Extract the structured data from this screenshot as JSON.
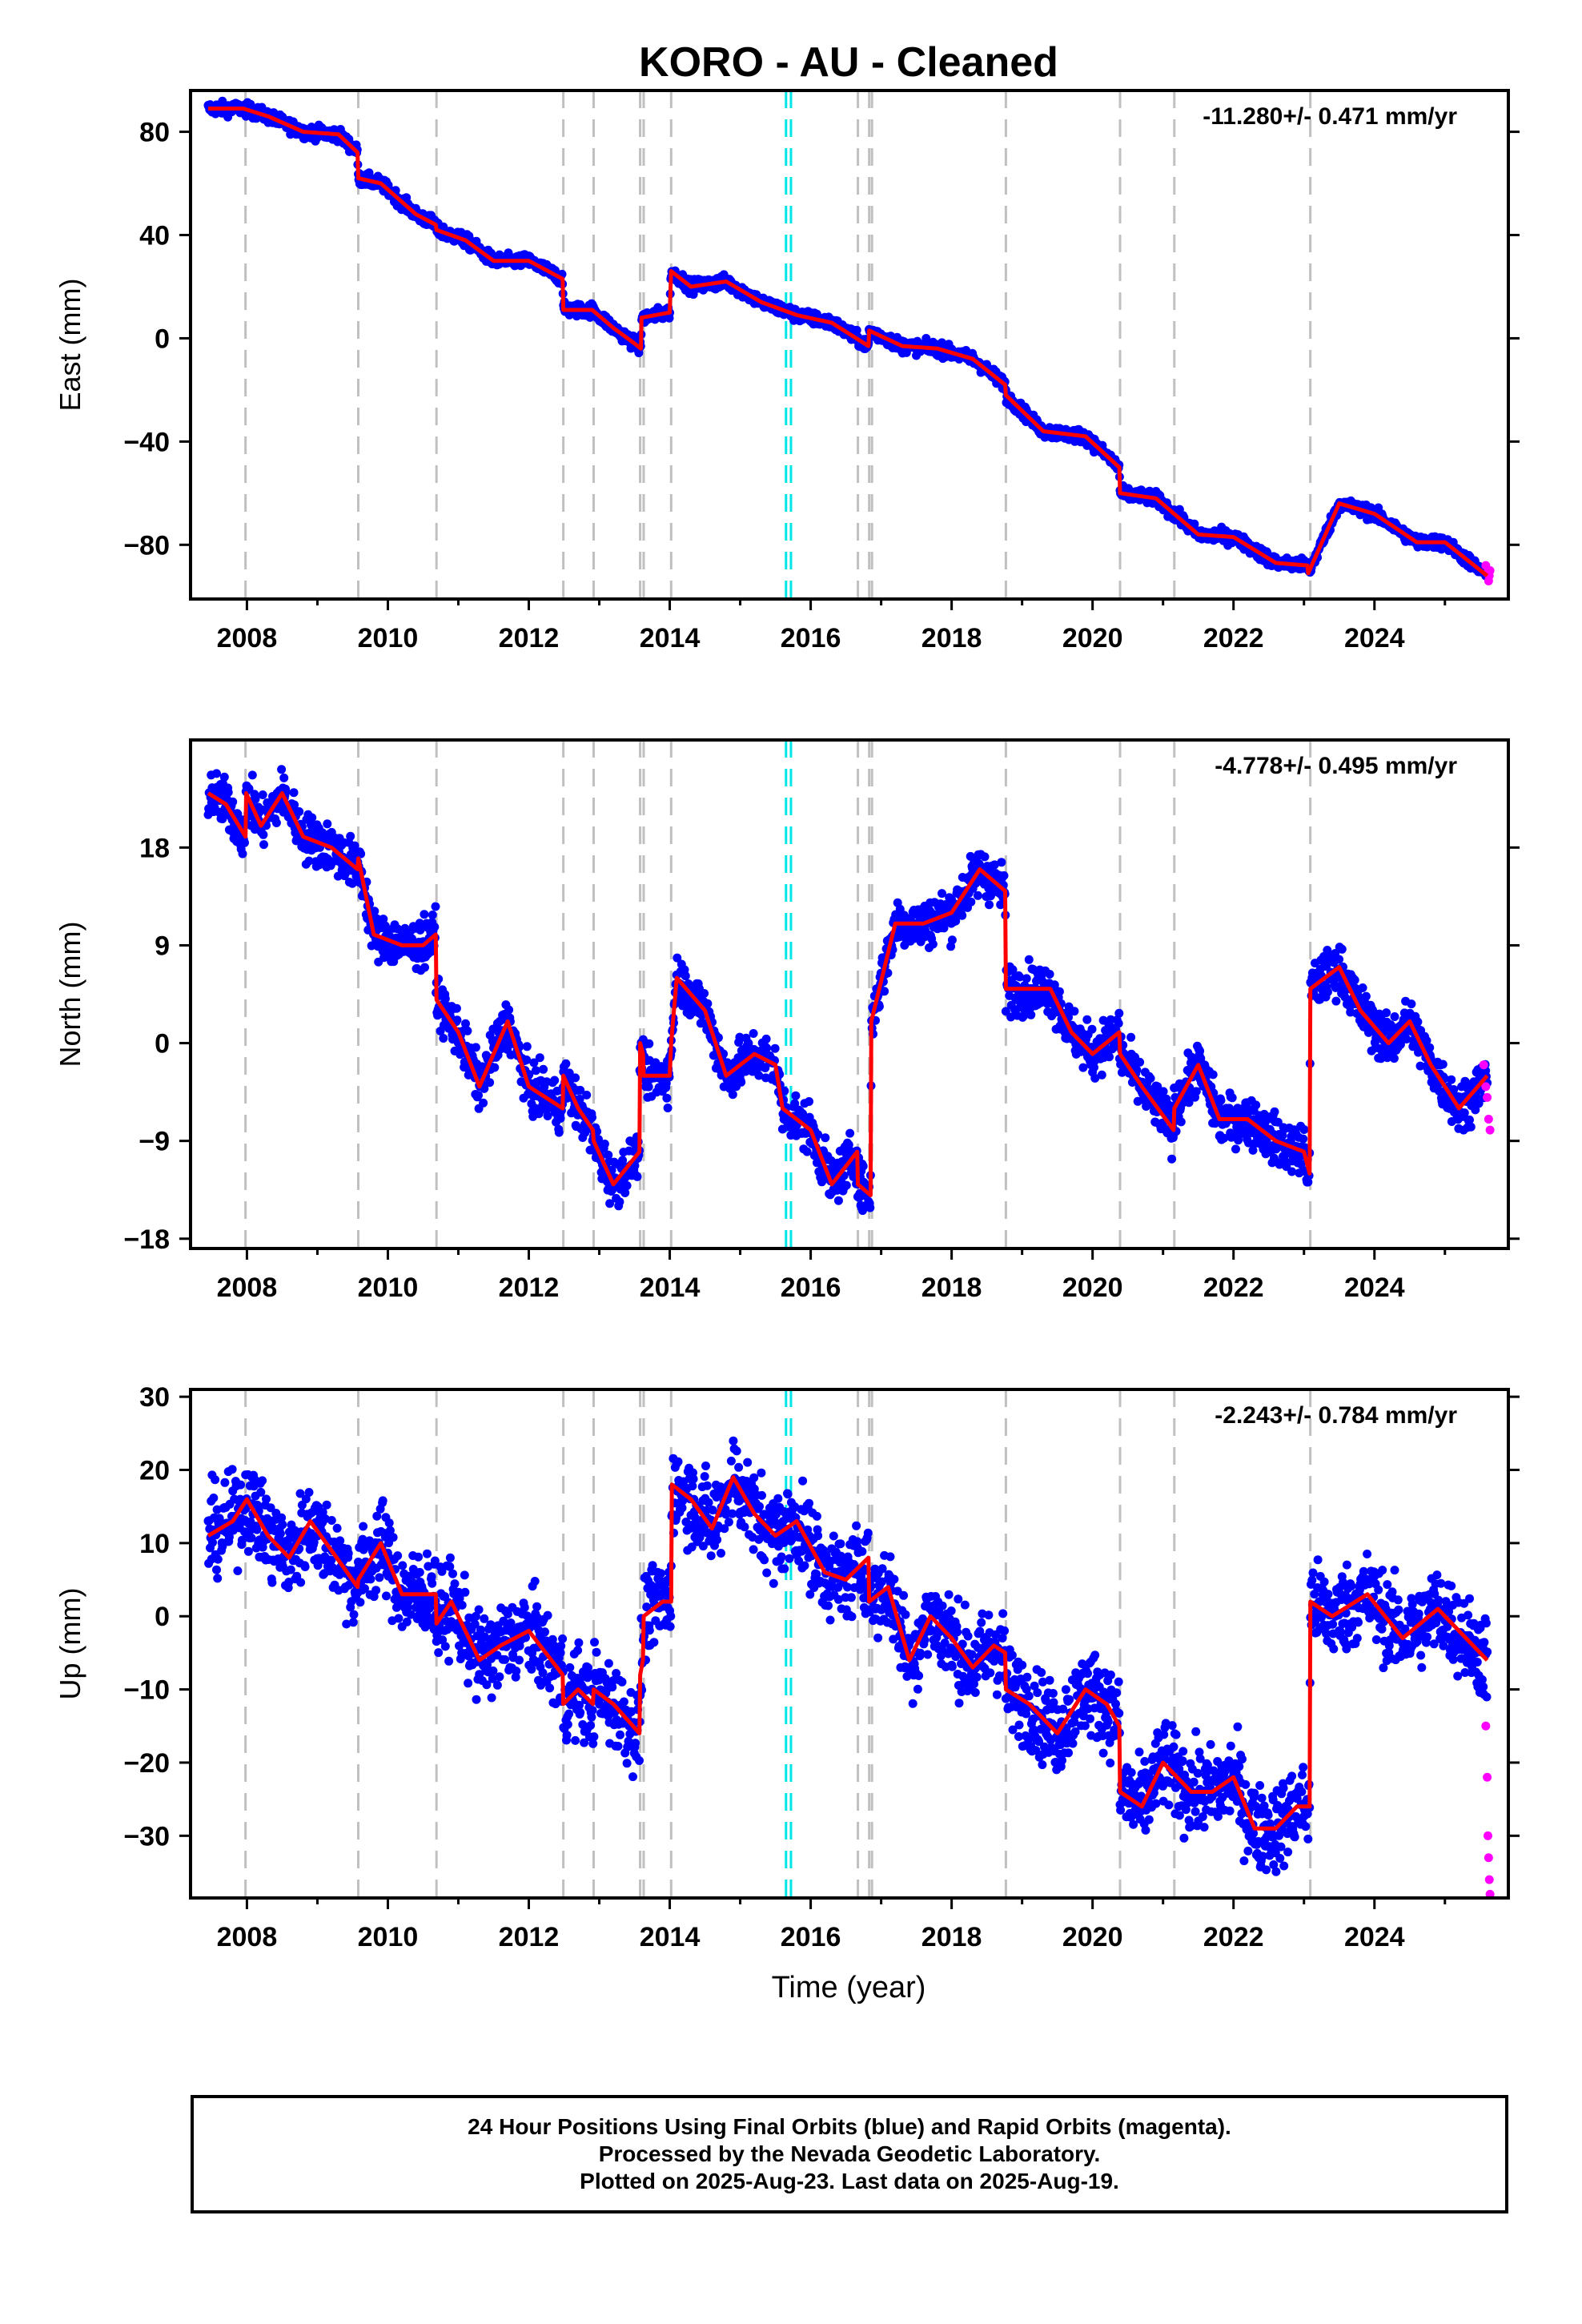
{
  "title": "KORO  - AU - Cleaned",
  "xlabel": "Time (year)",
  "footer": {
    "line1": "24 Hour Positions Using Final Orbits (blue) and Rapid Orbits (magenta).",
    "line2": "Processed by the Nevada Geodetic Laboratory.",
    "line3": "Plotted on 2025-Aug-23. Last data on 2025-Aug-19."
  },
  "colors": {
    "final": "#0000ff",
    "rapid": "#ff00ff",
    "model": "#ff0000",
    "event": "#c0c0c0",
    "antenna": "#00e5e5"
  },
  "chart_data": [
    {
      "type": "scatter",
      "name": "east",
      "ylabel": "East (mm)",
      "rate": "-11.280+/- 0.471 mm/yr",
      "xlim": [
        2007.2,
        2025.9
      ],
      "ylim": [
        -101,
        96
      ],
      "xticks": [
        2008,
        2010,
        2012,
        2014,
        2016,
        2018,
        2020,
        2022,
        2024
      ],
      "yticks": [
        -80,
        -40,
        0,
        40,
        80
      ],
      "noise": 1.8,
      "series": [
        {
          "x": [
            2007.45,
            2007.95,
            2008.3,
            2008.8,
            2009.3,
            2009.57,
            2009.58,
            2009.9,
            2010.4,
            2010.68,
            2010.69,
            2011.1,
            2011.5,
            2012.0,
            2012.48,
            2012.49,
            2012.9,
            2013.2,
            2013.5,
            2013.59,
            2013.6,
            2014.0,
            2014.02,
            2014.3,
            2014.8,
            2015.3,
            2015.8,
            2016.3,
            2016.82,
            2016.83,
            2017.3,
            2017.8,
            2018.3,
            2018.76,
            2018.77,
            2019.3,
            2019.9,
            2020.38,
            2020.39,
            2020.9,
            2021.5,
            2022.0,
            2022.6,
            2023.05,
            2023.06,
            2023.5,
            2024.0,
            2024.6,
            2025.0,
            2025.6
          ],
          "y": [
            89,
            89,
            86,
            80,
            79,
            72,
            62,
            60,
            48,
            44,
            42,
            38,
            30,
            30,
            23,
            11,
            11,
            4,
            -2,
            -4,
            8,
            10,
            26,
            20,
            22,
            14,
            9,
            6,
            -3,
            3,
            -3,
            -4,
            -8,
            -18,
            -22,
            -36,
            -38,
            -50,
            -60,
            -62,
            -76,
            -77,
            -87,
            -88,
            -91,
            -64,
            -68,
            -79,
            -79,
            -92
          ]
        }
      ],
      "rapid": {
        "x": [
          2025.58,
          2025.6,
          2025.62,
          2025.63,
          2025.64
        ],
        "y": [
          -88,
          -91,
          -94,
          -92,
          -90
        ]
      },
      "events": [
        2007.98,
        2009.58,
        2010.69,
        2012.49,
        2012.92,
        2013.58,
        2013.63,
        2014.02,
        2016.67,
        2016.83,
        2016.87,
        2018.77,
        2020.39,
        2021.16,
        2023.09
      ],
      "antenna": [
        2015.65,
        2015.72
      ]
    },
    {
      "type": "scatter",
      "name": "north",
      "ylabel": "North (mm)",
      "rate": "-4.778+/- 0.495 mm/yr",
      "xlim": [
        2007.2,
        2025.9
      ],
      "ylim": [
        -18.9,
        27.9
      ],
      "xticks": [
        2008,
        2010,
        2012,
        2014,
        2016,
        2018,
        2020,
        2022,
        2024
      ],
      "yticks": [
        -18,
        -9,
        0,
        9,
        18
      ],
      "noise": 1.6,
      "series": [
        {
          "x": [
            2007.45,
            2007.7,
            2007.98,
            2007.99,
            2008.2,
            2008.5,
            2008.8,
            2009.2,
            2009.57,
            2009.58,
            2009.8,
            2010.2,
            2010.5,
            2010.68,
            2010.69,
            2011.0,
            2011.3,
            2011.7,
            2012.0,
            2012.48,
            2012.49,
            2012.7,
            2012.91,
            2012.92,
            2013.2,
            2013.57,
            2013.58,
            2013.62,
            2013.63,
            2014.0,
            2014.02,
            2014.1,
            2014.5,
            2014.8,
            2015.2,
            2015.5,
            2015.6,
            2016.0,
            2016.3,
            2016.66,
            2016.67,
            2016.85,
            2016.86,
            2017.2,
            2017.6,
            2018.0,
            2018.4,
            2018.76,
            2018.77,
            2019.0,
            2019.4,
            2019.7,
            2020.0,
            2020.38,
            2020.39,
            2020.7,
            2021.15,
            2021.16,
            2021.5,
            2021.8,
            2022.2,
            2022.6,
            2023.0,
            2023.08,
            2023.09,
            2023.5,
            2023.8,
            2024.2,
            2024.5,
            2024.8,
            2025.2,
            2025.6
          ],
          "y": [
            23,
            22,
            19,
            23,
            20,
            23,
            19,
            18,
            16,
            17,
            10,
            9,
            9,
            10,
            4,
            1,
            -4,
            2,
            -4,
            -6,
            -3,
            -6,
            -8,
            -9,
            -13,
            -10,
            0,
            -1,
            -3,
            -3,
            0,
            6,
            3,
            -3,
            -1,
            -2,
            -6,
            -8,
            -13,
            -10,
            -13,
            -14,
            2,
            11,
            11,
            12,
            16,
            14,
            5,
            5,
            5,
            1,
            -1,
            1,
            -1,
            -4,
            -8,
            -6,
            -2,
            -7,
            -7,
            -9,
            -10,
            -12,
            5,
            7,
            3,
            0,
            2,
            -2,
            -6,
            -3
          ]
        }
      ],
      "rapid": {
        "x": [
          2025.55,
          2025.58,
          2025.6,
          2025.62,
          2025.64
        ],
        "y": [
          -2,
          -4,
          -5,
          -7,
          -8
        ]
      },
      "events": [
        2007.98,
        2009.58,
        2010.69,
        2012.49,
        2012.92,
        2013.58,
        2013.63,
        2014.02,
        2016.67,
        2016.83,
        2016.87,
        2018.77,
        2020.39,
        2021.16,
        2023.09
      ],
      "antenna": [
        2015.65,
        2015.72
      ]
    },
    {
      "type": "scatter",
      "name": "up",
      "ylabel": "Up (mm)",
      "rate": "-2.243+/- 0.784 mm/yr",
      "xlim": [
        2007.2,
        2025.9
      ],
      "ylim": [
        -38.5,
        31
      ],
      "xticks": [
        2008,
        2010,
        2012,
        2014,
        2016,
        2018,
        2020,
        2022,
        2024
      ],
      "yticks": [
        -30,
        -20,
        -10,
        0,
        10,
        20,
        30
      ],
      "noise": 4.2,
      "series": [
        {
          "x": [
            2007.45,
            2007.8,
            2008.0,
            2008.3,
            2008.6,
            2008.9,
            2009.2,
            2009.57,
            2009.58,
            2009.9,
            2010.2,
            2010.68,
            2010.69,
            2010.9,
            2011.3,
            2011.6,
            2012.0,
            2012.48,
            2012.49,
            2012.7,
            2012.91,
            2012.92,
            2013.2,
            2013.57,
            2013.58,
            2013.62,
            2013.63,
            2013.9,
            2014.02,
            2014.03,
            2014.3,
            2014.6,
            2014.9,
            2015.2,
            2015.5,
            2015.8,
            2016.2,
            2016.5,
            2016.82,
            2016.83,
            2017.1,
            2017.4,
            2017.7,
            2018.0,
            2018.3,
            2018.6,
            2018.76,
            2018.77,
            2019.1,
            2019.5,
            2019.9,
            2020.2,
            2020.38,
            2020.39,
            2020.7,
            2021.0,
            2021.4,
            2021.7,
            2022.0,
            2022.3,
            2022.6,
            2022.9,
            2023.08,
            2023.09,
            2023.4,
            2023.9,
            2024.4,
            2024.9,
            2025.6
          ],
          "y": [
            11,
            13,
            16,
            11,
            8,
            13,
            9,
            4,
            5,
            10,
            3,
            3,
            -1,
            2,
            -6,
            -4,
            -2,
            -8,
            -12,
            -10,
            -12,
            -10,
            -12,
            -16,
            -8,
            -6,
            0,
            2,
            2,
            18,
            16,
            12,
            19,
            14,
            11,
            13,
            6,
            5,
            8,
            2,
            4,
            -6,
            0,
            -3,
            -7,
            -4,
            -5,
            -10,
            -12,
            -16,
            -10,
            -12,
            -15,
            -24,
            -26,
            -20,
            -24,
            -24,
            -22,
            -29,
            -29,
            -26,
            -26,
            2,
            0,
            3,
            -3,
            1,
            -6
          ]
        }
      ],
      "rapid": {
        "x": [
          2025.58,
          2025.6,
          2025.61,
          2025.62,
          2025.63,
          2025.64
        ],
        "y": [
          -15,
          -22,
          -30,
          -33,
          -36,
          -38
        ]
      },
      "events": [
        2007.98,
        2009.58,
        2010.69,
        2012.49,
        2012.92,
        2013.58,
        2013.63,
        2014.02,
        2016.67,
        2016.83,
        2016.87,
        2018.77,
        2020.39,
        2021.16,
        2023.09
      ],
      "antenna": [
        2015.65,
        2015.72
      ]
    }
  ]
}
